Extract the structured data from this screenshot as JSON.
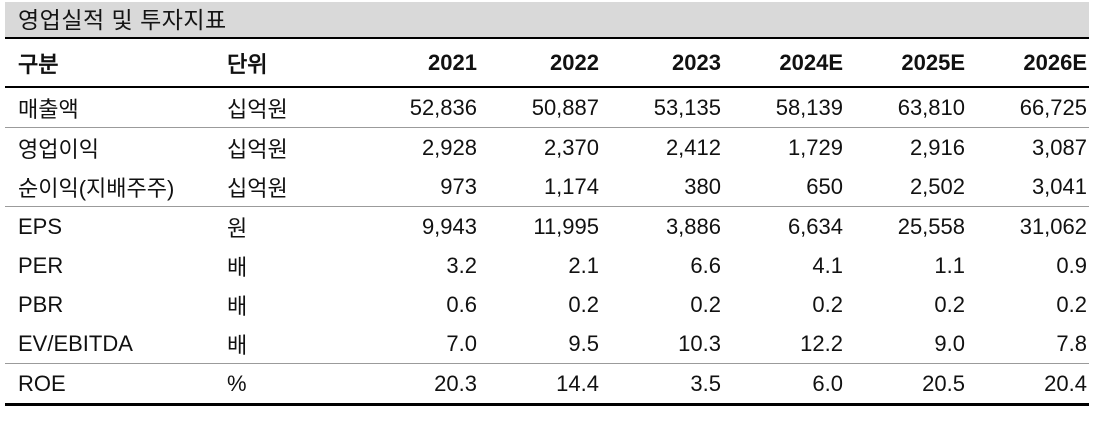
{
  "title": "영업실적 및 투자지표",
  "table": {
    "columns": [
      "구분",
      "단위",
      "2021",
      "2022",
      "2023",
      "2024E",
      "2025E",
      "2026E"
    ],
    "rows": [
      {
        "label": "매출액",
        "unit": "십억원",
        "values": [
          "52,836",
          "50,887",
          "53,135",
          "58,139",
          "63,810",
          "66,725"
        ]
      },
      {
        "label": "영업이익",
        "unit": "십억원",
        "values": [
          "2,928",
          "2,370",
          "2,412",
          "1,729",
          "2,916",
          "3,087"
        ]
      },
      {
        "label": "순이익(지배주주)",
        "unit": "십억원",
        "values": [
          "973",
          "1,174",
          "380",
          "650",
          "2,502",
          "3,041"
        ]
      },
      {
        "label": "EPS",
        "unit": "원",
        "values": [
          "9,943",
          "11,995",
          "3,886",
          "6,634",
          "25,558",
          "31,062"
        ]
      },
      {
        "label": "PER",
        "unit": "배",
        "values": [
          "3.2",
          "2.1",
          "6.6",
          "4.1",
          "1.1",
          "0.9"
        ]
      },
      {
        "label": "PBR",
        "unit": "배",
        "values": [
          "0.6",
          "0.2",
          "0.2",
          "0.2",
          "0.2",
          "0.2"
        ]
      },
      {
        "label": "EV/EBITDA",
        "unit": "배",
        "values": [
          "7.0",
          "9.5",
          "10.3",
          "12.2",
          "9.0",
          "7.8"
        ]
      },
      {
        "label": "ROE",
        "unit": "%",
        "values": [
          "20.3",
          "14.4",
          "3.5",
          "6.0",
          "20.5",
          "20.4"
        ]
      }
    ]
  },
  "colors": {
    "title_bar_bg": "#d9d9d9",
    "text": "#111111",
    "heavy_rule": "#000000",
    "light_rule": "#9b9b9b"
  }
}
